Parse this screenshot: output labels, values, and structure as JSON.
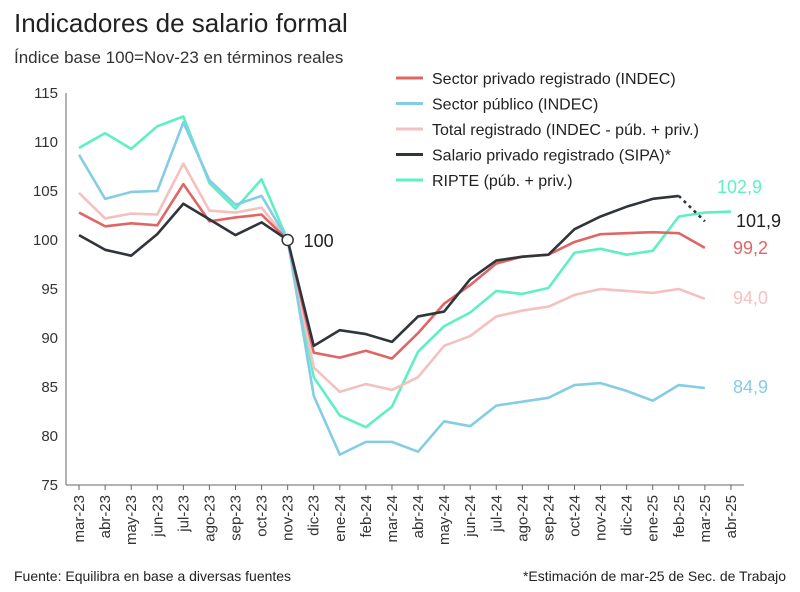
{
  "title": "Indicadores de salario formal",
  "subtitle": "Índice base 100=Nov-23 en términos reales",
  "source": "Fuente: Equilibra en base a diversas fuentes",
  "note": "*Estimación de mar-25 de Sec. de Trabajo",
  "chart_data": {
    "type": "line",
    "categories": [
      "mar-23",
      "abr-23",
      "may-23",
      "jun-23",
      "jul-23",
      "ago-23",
      "sep-23",
      "oct-23",
      "nov-23",
      "dic-23",
      "ene-24",
      "feb-24",
      "mar-24",
      "abr-24",
      "may-24",
      "jun-24",
      "jul-24",
      "ago-24",
      "sep-24",
      "oct-24",
      "nov-24",
      "dic-24",
      "ene-25",
      "feb-25",
      "mar-25",
      "abr-25"
    ],
    "ylim": [
      75,
      115
    ],
    "yticks": [
      75,
      80,
      85,
      90,
      95,
      100,
      105,
      110,
      115
    ],
    "grid": false,
    "legend_position": "top-right",
    "base_label": "100",
    "series": [
      {
        "name": "Sector privado registrado (INDEC)",
        "color": "#e06666",
        "values": [
          102.8,
          101.4,
          101.7,
          101.5,
          105.7,
          101.9,
          102.3,
          102.6,
          100,
          88.5,
          88.0,
          88.7,
          87.9,
          90.5,
          93.5,
          95.4,
          97.6,
          98.3,
          98.5,
          99.8,
          100.6,
          100.7,
          100.8,
          100.7,
          99.2,
          null
        ],
        "end_label": "99,2"
      },
      {
        "name": "Sector público (INDEC)",
        "color": "#84cde4",
        "values": [
          108.7,
          104.2,
          104.9,
          105.0,
          112.0,
          106.1,
          103.6,
          104.5,
          100,
          84.1,
          78.1,
          79.4,
          79.4,
          78.4,
          81.5,
          81.0,
          83.1,
          83.5,
          83.9,
          85.2,
          85.4,
          84.6,
          83.6,
          85.2,
          84.9,
          null
        ],
        "end_label": "84,9"
      },
      {
        "name": "Total registrado (INDEC - púb. + priv.)",
        "color": "#f5c0c0",
        "values": [
          104.8,
          102.2,
          102.7,
          102.6,
          107.8,
          103.0,
          102.8,
          103.3,
          100,
          87.0,
          84.5,
          85.3,
          84.7,
          86.0,
          89.2,
          90.2,
          92.2,
          92.8,
          93.2,
          94.4,
          95.0,
          94.8,
          94.6,
          95.0,
          94.0,
          null
        ],
        "end_label": "94,0"
      },
      {
        "name": "Salario privado registrado (SIPA)*",
        "color": "#30353b",
        "values": [
          100.5,
          99.0,
          98.4,
          100.6,
          103.7,
          102.1,
          100.5,
          101.8,
          100,
          89.2,
          90.8,
          90.4,
          89.6,
          92.2,
          92.7,
          96.0,
          97.9,
          98.3,
          98.5,
          101.1,
          102.4,
          103.4,
          104.2,
          104.5,
          101.9,
          null
        ],
        "estimated_points": [
          "mar-25"
        ],
        "end_label": "101,9"
      },
      {
        "name": "RIPTE (púb. + priv.)",
        "color": "#5ef0c4",
        "values": [
          109.4,
          110.9,
          109.3,
          111.6,
          112.6,
          105.8,
          103.2,
          106.2,
          100,
          86.0,
          82.1,
          80.9,
          83.0,
          88.6,
          91.2,
          92.6,
          94.8,
          94.5,
          95.1,
          98.7,
          99.1,
          98.5,
          98.9,
          102.4,
          102.8,
          102.9
        ],
        "end_label": "102,9"
      }
    ]
  }
}
